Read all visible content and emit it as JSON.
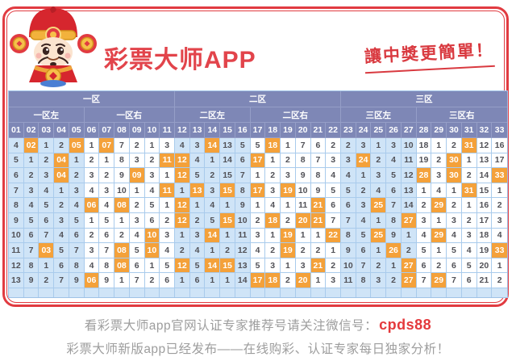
{
  "header": {
    "app_title": "彩票大师APP",
    "slogan": "讓中獎更簡單！"
  },
  "colors": {
    "frame_red": "#e13b41",
    "title_red": "#e2444b",
    "header_purple": "#7e87b6",
    "cell_blue": "#cfe4f7",
    "cell_white": "#ffffff",
    "grid_border": "#a9cbec",
    "hit_orange": "#f4a13a",
    "number_text": "#515157",
    "footer_gray": "#9d9d9d",
    "code_red": "#e4393c"
  },
  "table": {
    "zones": [
      {
        "label": "一区",
        "span": 11
      },
      {
        "label": "二区",
        "span": 11
      },
      {
        "label": "三区",
        "span": 11
      }
    ],
    "subzones": [
      {
        "label": "一区左",
        "span": 5
      },
      {
        "label": "一区右",
        "span": 6
      },
      {
        "label": "二区左",
        "span": 5
      },
      {
        "label": "二区右",
        "span": 6
      },
      {
        "label": "三区左",
        "span": 5
      },
      {
        "label": "三区右",
        "span": 6
      }
    ],
    "columns": [
      "01",
      "02",
      "03",
      "04",
      "05",
      "06",
      "07",
      "08",
      "09",
      "10",
      "11",
      "12",
      "13",
      "14",
      "15",
      "16",
      "17",
      "18",
      "19",
      "20",
      "21",
      "22",
      "23",
      "24",
      "25",
      "26",
      "27",
      "28",
      "29",
      "30",
      "31",
      "32",
      "33"
    ],
    "blue_column_ranges": [
      [
        1,
        5
      ],
      [
        12,
        16
      ],
      [
        23,
        27
      ]
    ],
    "rows": [
      {
        "cells": [
          "4",
          "02",
          "1",
          "2",
          "05",
          "1",
          "07",
          "7",
          "2",
          "1",
          "3",
          "4",
          "3",
          "14",
          "13",
          "5",
          "5",
          "18",
          "1",
          "7",
          "6",
          "2",
          "2",
          "3",
          "1",
          "3",
          "10",
          "18",
          "1",
          "2",
          "31",
          "12",
          "16"
        ],
        "hits": [
          2,
          5,
          7,
          14,
          18,
          31
        ]
      },
      {
        "cells": [
          "5",
          "1",
          "2",
          "04",
          "1",
          "2",
          "1",
          "8",
          "3",
          "2",
          "11",
          "12",
          "4",
          "1",
          "14",
          "6",
          "17",
          "1",
          "2",
          "8",
          "7",
          "3",
          "3",
          "24",
          "2",
          "4",
          "11",
          "19",
          "2",
          "30",
          "1",
          "13",
          "17"
        ],
        "hits": [
          4,
          11,
          12,
          17,
          24,
          30
        ]
      },
      {
        "cells": [
          "6",
          "2",
          "3",
          "04",
          "2",
          "3",
          "2",
          "9",
          "09",
          "3",
          "1",
          "12",
          "5",
          "2",
          "15",
          "7",
          "1",
          "2",
          "3",
          "9",
          "8",
          "4",
          "4",
          "1",
          "3",
          "5",
          "12",
          "28",
          "3",
          "30",
          "2",
          "14",
          "33"
        ],
        "hits": [
          4,
          9,
          12,
          28,
          30,
          33
        ]
      },
      {
        "cells": [
          "7",
          "3",
          "4",
          "1",
          "3",
          "4",
          "3",
          "10",
          "1",
          "4",
          "11",
          "1",
          "13",
          "3",
          "15",
          "8",
          "17",
          "3",
          "19",
          "10",
          "9",
          "5",
          "5",
          "2",
          "4",
          "6",
          "13",
          "1",
          "4",
          "1",
          "31",
          "15",
          "1"
        ],
        "hits": [
          11,
          13,
          15,
          17,
          19,
          31
        ]
      },
      {
        "cells": [
          "8",
          "4",
          "5",
          "2",
          "4",
          "06",
          "4",
          "08",
          "2",
          "5",
          "1",
          "12",
          "1",
          "4",
          "1",
          "9",
          "1",
          "4",
          "1",
          "11",
          "21",
          "6",
          "6",
          "3",
          "25",
          "7",
          "14",
          "2",
          "29",
          "2",
          "1",
          "16",
          "2"
        ],
        "hits": [
          6,
          8,
          12,
          21,
          25,
          29
        ]
      },
      {
        "cells": [
          "9",
          "5",
          "6",
          "3",
          "5",
          "1",
          "5",
          "1",
          "3",
          "6",
          "2",
          "12",
          "2",
          "5",
          "15",
          "10",
          "2",
          "18",
          "2",
          "20",
          "21",
          "7",
          "7",
          "4",
          "1",
          "8",
          "27",
          "3",
          "1",
          "3",
          "2",
          "17",
          "3"
        ],
        "hits": [
          12,
          15,
          18,
          20,
          21,
          27
        ]
      },
      {
        "cells": [
          "10",
          "6",
          "7",
          "4",
          "6",
          "2",
          "6",
          "2",
          "4",
          "10",
          "3",
          "1",
          "3",
          "14",
          "1",
          "11",
          "3",
          "1",
          "19",
          "1",
          "1",
          "22",
          "8",
          "5",
          "25",
          "9",
          "1",
          "4",
          "29",
          "4",
          "3",
          "18",
          "4"
        ],
        "hits": [
          10,
          14,
          19,
          22,
          25,
          29
        ]
      },
      {
        "cells": [
          "11",
          "7",
          "03",
          "5",
          "7",
          "3",
          "7",
          "08",
          "5",
          "10",
          "4",
          "2",
          "4",
          "1",
          "2",
          "12",
          "4",
          "2",
          "19",
          "2",
          "2",
          "1",
          "9",
          "6",
          "1",
          "26",
          "2",
          "5",
          "1",
          "5",
          "4",
          "19",
          "33"
        ],
        "hits": [
          3,
          8,
          10,
          19,
          26,
          33
        ]
      },
      {
        "cells": [
          "12",
          "8",
          "1",
          "6",
          "8",
          "4",
          "8",
          "08",
          "6",
          "1",
          "5",
          "12",
          "5",
          "14",
          "15",
          "13",
          "5",
          "3",
          "1",
          "3",
          "21",
          "2",
          "10",
          "7",
          "2",
          "1",
          "27",
          "6",
          "2",
          "6",
          "5",
          "20",
          "1"
        ],
        "hits": [
          8,
          12,
          14,
          15,
          21,
          27
        ]
      },
      {
        "cells": [
          "13",
          "9",
          "2",
          "7",
          "9",
          "06",
          "9",
          "1",
          "7",
          "2",
          "6",
          "1",
          "6",
          "1",
          "1",
          "14",
          "17",
          "18",
          "2",
          "20",
          "1",
          "3",
          "11",
          "8",
          "3",
          "2",
          "27",
          "7",
          "29",
          "7",
          "6",
          "21",
          "2"
        ],
        "hits": [
          6,
          17,
          18,
          20,
          27,
          29
        ]
      }
    ]
  },
  "footer": {
    "line1_prefix": "看彩票大师app官网认证专家推荐号请关注微信号：",
    "line1_code": "cpds88",
    "line2": "彩票大师新版app已经发布——在线购彩、认证专家每日独家分析！"
  }
}
